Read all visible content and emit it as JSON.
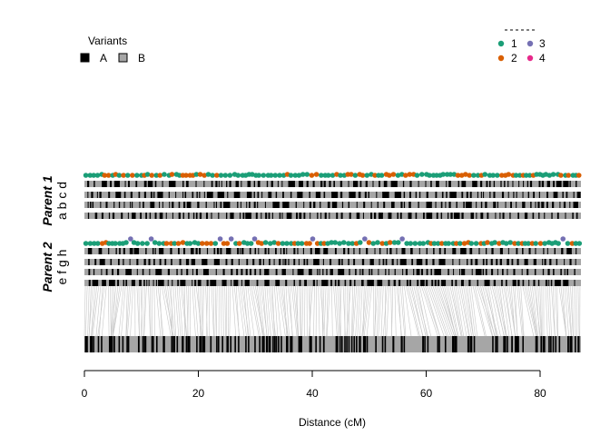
{
  "chart_data": {
    "type": "haplotype-map",
    "xlabel": "Distance (cM)",
    "xlim": [
      0,
      87
    ],
    "x_ticks": [
      0,
      20,
      40,
      60,
      80
    ],
    "x_tick_labels": [
      "0",
      "20",
      "40",
      "60",
      "80"
    ],
    "variant_legend": {
      "title": "Variants",
      "items": [
        {
          "label": "A",
          "color": "#000000"
        },
        {
          "label": "B",
          "color": "#a6a6a6"
        }
      ]
    },
    "class_legend": {
      "title": "",
      "items": [
        {
          "label": "1",
          "color": "#1b9e77"
        },
        {
          "label": "2",
          "color": "#d95f02"
        },
        {
          "label": "3",
          "color": "#7570b3"
        },
        {
          "label": "4",
          "color": "#e7298a"
        }
      ]
    },
    "parents": [
      {
        "title": "Parent 1",
        "haplotype_labels": "a b c d",
        "n_tracks": 4,
        "dot_classes": [
          1,
          2
        ],
        "seed": 11
      },
      {
        "title": "Parent 2",
        "haplotype_labels": "e f g h",
        "n_tracks": 4,
        "dot_classes": [
          1,
          2,
          3
        ],
        "seed": 29
      }
    ],
    "consensus_track": {
      "seed": 53
    },
    "n_markers": 260
  }
}
